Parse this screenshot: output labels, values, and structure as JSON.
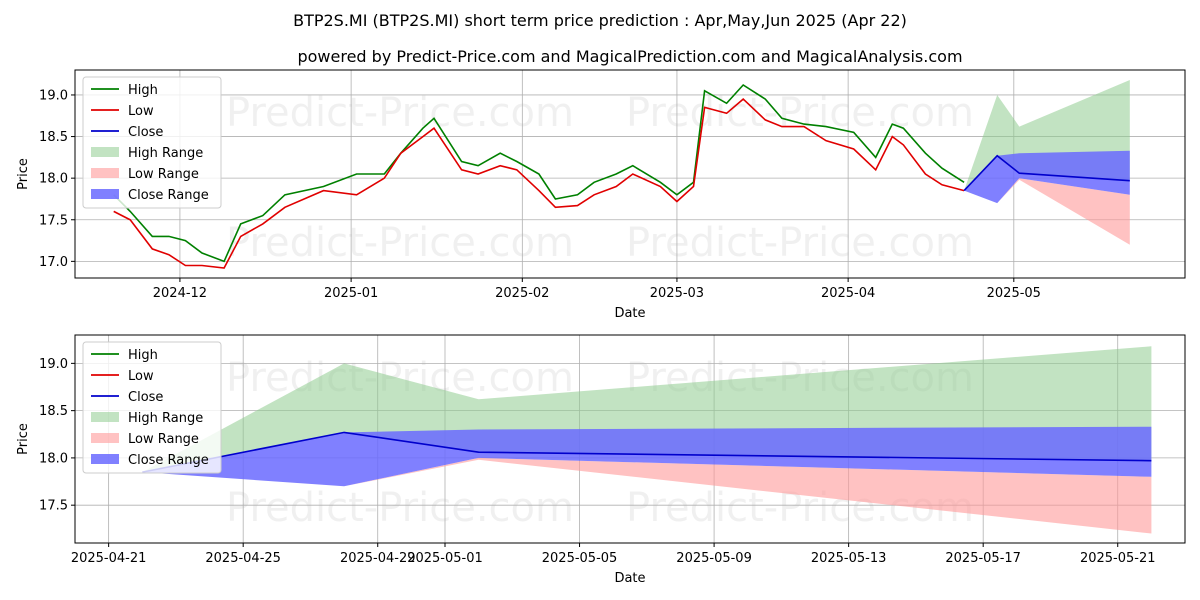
{
  "title": "BTP2S.MI (BTP2S.MI) short term price prediction : Apr,May,Jun 2025 (Apr 22)",
  "subtitle": "powered by Predict-Price.com and MagicalPrediction.com and MagicalAnalysis.com",
  "watermark": "Predict-Price.com",
  "colors": {
    "high": "#008000",
    "low": "#e00000",
    "close": "#0000cc",
    "high_range": "#8fcc8f",
    "low_range": "#ff9a9a",
    "close_range": "#6a6aff"
  },
  "chart_data": [
    {
      "type": "line",
      "xlabel": "Date",
      "ylabel": "Price",
      "xlim": [
        "2024-11-12",
        "2025-06-01"
      ],
      "ylim": [
        16.8,
        19.3
      ],
      "yticks": [
        17.0,
        17.5,
        18.0,
        18.5,
        19.0
      ],
      "ytick_labels": [
        "17.0",
        "17.5",
        "18.0",
        "18.5",
        "19.0"
      ],
      "xticks": [
        "2024-12-01",
        "2025-01-01",
        "2025-02-01",
        "2025-03-01",
        "2025-04-01",
        "2025-05-01"
      ],
      "xtick_labels": [
        "2024-12",
        "2025-01",
        "2025-02",
        "2025-03",
        "2025-04",
        "2025-05"
      ],
      "grid": true,
      "legend_position": "top-left",
      "legend": [
        "High",
        "Low",
        "Close",
        "High Range",
        "Low Range",
        "Close Range"
      ],
      "series": [
        {
          "name": "High",
          "x": [
            "2024-11-19",
            "2024-11-22",
            "2024-11-26",
            "2024-11-29",
            "2024-12-02",
            "2024-12-05",
            "2024-12-09",
            "2024-12-12",
            "2024-12-16",
            "2024-12-20",
            "2024-12-27",
            "2025-01-02",
            "2025-01-07",
            "2025-01-10",
            "2025-01-14",
            "2025-01-16",
            "2025-01-21",
            "2025-01-24",
            "2025-01-28",
            "2025-01-31",
            "2025-02-04",
            "2025-02-07",
            "2025-02-11",
            "2025-02-14",
            "2025-02-18",
            "2025-02-21",
            "2025-02-26",
            "2025-03-01",
            "2025-03-04",
            "2025-03-06",
            "2025-03-10",
            "2025-03-13",
            "2025-03-17",
            "2025-03-20",
            "2025-03-24",
            "2025-03-28",
            "2025-04-02",
            "2025-04-06",
            "2025-04-09",
            "2025-04-11",
            "2025-04-15",
            "2025-04-18",
            "2025-04-22"
          ],
          "y": [
            17.8,
            17.6,
            17.3,
            17.3,
            17.25,
            17.1,
            17.0,
            17.45,
            17.55,
            17.8,
            17.9,
            18.05,
            18.05,
            18.3,
            18.6,
            18.72,
            18.2,
            18.15,
            18.3,
            18.2,
            18.05,
            17.75,
            17.8,
            17.95,
            18.05,
            18.15,
            17.95,
            17.8,
            17.95,
            19.05,
            18.9,
            19.12,
            18.95,
            18.72,
            18.65,
            18.62,
            18.55,
            18.25,
            18.65,
            18.6,
            18.3,
            18.12,
            17.95
          ]
        },
        {
          "name": "Low",
          "x": [
            "2024-11-19",
            "2024-11-22",
            "2024-11-26",
            "2024-11-29",
            "2024-12-02",
            "2024-12-05",
            "2024-12-09",
            "2024-12-12",
            "2024-12-16",
            "2024-12-20",
            "2024-12-27",
            "2025-01-02",
            "2025-01-07",
            "2025-01-10",
            "2025-01-14",
            "2025-01-16",
            "2025-01-21",
            "2025-01-24",
            "2025-01-28",
            "2025-01-31",
            "2025-02-04",
            "2025-02-07",
            "2025-02-11",
            "2025-02-14",
            "2025-02-18",
            "2025-02-21",
            "2025-02-26",
            "2025-03-01",
            "2025-03-04",
            "2025-03-06",
            "2025-03-10",
            "2025-03-13",
            "2025-03-17",
            "2025-03-20",
            "2025-03-24",
            "2025-03-28",
            "2025-04-02",
            "2025-04-06",
            "2025-04-09",
            "2025-04-11",
            "2025-04-15",
            "2025-04-18",
            "2025-04-22"
          ],
          "y": [
            17.6,
            17.5,
            17.15,
            17.08,
            16.95,
            16.95,
            16.92,
            17.3,
            17.45,
            17.65,
            17.85,
            17.8,
            18.0,
            18.3,
            18.5,
            18.6,
            18.1,
            18.05,
            18.15,
            18.1,
            17.85,
            17.65,
            17.67,
            17.8,
            17.9,
            18.05,
            17.9,
            17.72,
            17.9,
            18.85,
            18.78,
            18.95,
            18.7,
            18.62,
            18.62,
            18.45,
            18.35,
            18.1,
            18.5,
            18.4,
            18.05,
            17.92,
            17.85
          ]
        },
        {
          "name": "Close",
          "x": [
            "2025-04-22",
            "2025-04-28",
            "2025-05-02",
            "2025-05-22"
          ],
          "y": [
            17.85,
            18.27,
            18.06,
            17.97
          ]
        },
        {
          "name": "High Range",
          "x": [
            "2025-04-22",
            "2025-04-28",
            "2025-05-02",
            "2025-05-22"
          ],
          "upper": [
            17.85,
            19.0,
            18.62,
            19.18
          ],
          "lower": [
            17.85,
            18.27,
            18.06,
            17.97
          ]
        },
        {
          "name": "Low Range",
          "x": [
            "2025-04-22",
            "2025-04-28",
            "2025-05-02",
            "2025-05-22"
          ],
          "upper": [
            17.85,
            17.7,
            18.0,
            17.8
          ],
          "lower": [
            17.85,
            17.7,
            17.98,
            17.2
          ]
        },
        {
          "name": "Close Range",
          "x": [
            "2025-04-22",
            "2025-04-28",
            "2025-05-02",
            "2025-05-22"
          ],
          "upper": [
            17.85,
            18.27,
            18.3,
            18.33
          ],
          "lower": [
            17.85,
            17.7,
            18.0,
            17.8
          ]
        }
      ]
    },
    {
      "type": "line",
      "xlabel": "Date",
      "ylabel": "Price",
      "xlim": [
        "2025-04-20",
        "2025-05-23"
      ],
      "ylim": [
        17.1,
        19.3
      ],
      "yticks": [
        17.5,
        18.0,
        18.5,
        19.0
      ],
      "ytick_labels": [
        "17.5",
        "18.0",
        "18.5",
        "19.0"
      ],
      "xticks": [
        "2025-04-21",
        "2025-04-25",
        "2025-04-29",
        "2025-05-01",
        "2025-05-05",
        "2025-05-09",
        "2025-05-13",
        "2025-05-17",
        "2025-05-21"
      ],
      "xtick_labels": [
        "2025-04-21",
        "2025-04-25",
        "2025-04-29",
        "2025-05-01",
        "2025-05-05",
        "2025-05-09",
        "2025-05-13",
        "2025-05-17",
        "2025-05-21"
      ],
      "grid": true,
      "legend_position": "top-left",
      "legend": [
        "High",
        "Low",
        "Close",
        "High Range",
        "Low Range",
        "Close Range"
      ],
      "series": [
        {
          "name": "Close",
          "x": [
            "2025-04-22",
            "2025-04-28",
            "2025-05-02",
            "2025-05-22"
          ],
          "y": [
            17.85,
            18.27,
            18.06,
            17.97
          ]
        },
        {
          "name": "High Range",
          "x": [
            "2025-04-22",
            "2025-04-28",
            "2025-05-02",
            "2025-05-22"
          ],
          "upper": [
            17.85,
            19.0,
            18.62,
            19.18
          ],
          "lower": [
            17.85,
            18.27,
            18.06,
            17.97
          ]
        },
        {
          "name": "Low Range",
          "x": [
            "2025-04-22",
            "2025-04-28",
            "2025-05-02",
            "2025-05-22"
          ],
          "upper": [
            17.85,
            17.7,
            18.0,
            17.8
          ],
          "lower": [
            17.85,
            17.7,
            17.98,
            17.2
          ]
        },
        {
          "name": "Close Range",
          "x": [
            "2025-04-22",
            "2025-04-28",
            "2025-05-02",
            "2025-05-22"
          ],
          "upper": [
            17.85,
            18.27,
            18.3,
            18.33
          ],
          "lower": [
            17.85,
            17.7,
            18.0,
            17.8
          ]
        }
      ]
    }
  ]
}
